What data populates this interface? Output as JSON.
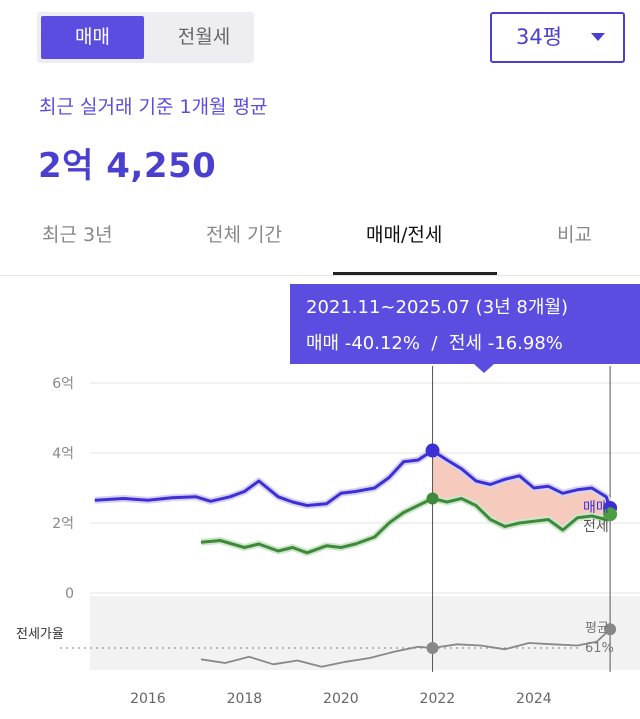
{
  "trade_toggle": {
    "sale": "매매",
    "jeonse_monthly": "전월세"
  },
  "size_select": {
    "value": "34평"
  },
  "summary": {
    "subtitle": "최근 실거래 기준 1개월 평균",
    "price": "2억 4,250"
  },
  "tabs": [
    {
      "label": "최근 3년",
      "active": false
    },
    {
      "label": "전체 기간",
      "active": false
    },
    {
      "label": "매매/전세",
      "active": true
    },
    {
      "label": "비교",
      "active": false
    }
  ],
  "tooltip": {
    "period": "2021.11~2025.07 (3년 8개월)",
    "change": "매매 -40.12%  /  전세 -16.98%"
  },
  "colors": {
    "accent": "#5b4de0",
    "sale": "#3d2fd6",
    "jeonse": "#3f8a3a",
    "ratio": "#888888",
    "diff_fill": "#f4b8a8"
  },
  "chart_data": {
    "type": "line",
    "y_unit_labels": [
      "6억",
      "4억",
      "2억",
      "0"
    ],
    "y_ticks": [
      6,
      4,
      2,
      0
    ],
    "ylim": [
      0,
      6
    ],
    "x_ticks": [
      "2016",
      "2018",
      "2020",
      "2022",
      "2024"
    ],
    "xlim": [
      2014.8,
      2026.2
    ],
    "series": [
      {
        "name": "매매",
        "x": [
          2014.9,
          2015.5,
          2016.0,
          2016.5,
          2017.0,
          2017.3,
          2017.7,
          2018.0,
          2018.3,
          2018.7,
          2019.0,
          2019.3,
          2019.7,
          2020.0,
          2020.3,
          2020.7,
          2021.0,
          2021.3,
          2021.6,
          2021.9,
          2022.2,
          2022.5,
          2022.8,
          2023.1,
          2023.4,
          2023.7,
          2024.0,
          2024.3,
          2024.6,
          2024.9,
          2025.2,
          2025.5,
          2025.58
        ],
        "values": [
          2.65,
          2.7,
          2.65,
          2.72,
          2.75,
          2.62,
          2.75,
          2.9,
          3.2,
          2.75,
          2.6,
          2.5,
          2.55,
          2.85,
          2.9,
          3.0,
          3.3,
          3.75,
          3.8,
          4.07,
          3.8,
          3.55,
          3.2,
          3.1,
          3.25,
          3.35,
          3.0,
          3.05,
          2.85,
          2.95,
          3.0,
          2.75,
          2.43
        ]
      },
      {
        "name": "전세",
        "x": [
          2017.1,
          2017.5,
          2018.0,
          2018.3,
          2018.7,
          2019.0,
          2019.3,
          2019.7,
          2020.0,
          2020.3,
          2020.7,
          2021.0,
          2021.3,
          2021.6,
          2021.9,
          2022.2,
          2022.5,
          2022.8,
          2023.1,
          2023.4,
          2023.7,
          2024.0,
          2024.3,
          2024.6,
          2024.9,
          2025.2,
          2025.5,
          2025.58
        ],
        "values": [
          1.45,
          1.5,
          1.3,
          1.4,
          1.2,
          1.3,
          1.15,
          1.35,
          1.3,
          1.4,
          1.6,
          2.0,
          2.3,
          2.5,
          2.7,
          2.6,
          2.7,
          2.5,
          2.1,
          1.9,
          2.0,
          2.05,
          2.1,
          1.8,
          2.15,
          2.2,
          2.1,
          2.25
        ]
      },
      {
        "name": "전세가율",
        "x": [
          2017.1,
          2017.6,
          2018.1,
          2018.6,
          2019.1,
          2019.6,
          2020.1,
          2020.6,
          2021.1,
          2021.6,
          2021.9,
          2022.4,
          2022.9,
          2023.4,
          2023.9,
          2024.4,
          2024.9,
          2025.3,
          2025.58
        ],
        "values": [
          52,
          49,
          54,
          48,
          51,
          46,
          50,
          53,
          58,
          62,
          61,
          64,
          63,
          60,
          65,
          64,
          63,
          66,
          76
        ]
      }
    ],
    "markers": {
      "start_x": 2021.9,
      "end_x": 2025.58
    },
    "ratio_label": "전세가율",
    "avg_label": "평균",
    "avg_value": "61%",
    "end_labels": [
      "매매",
      "전세"
    ]
  }
}
